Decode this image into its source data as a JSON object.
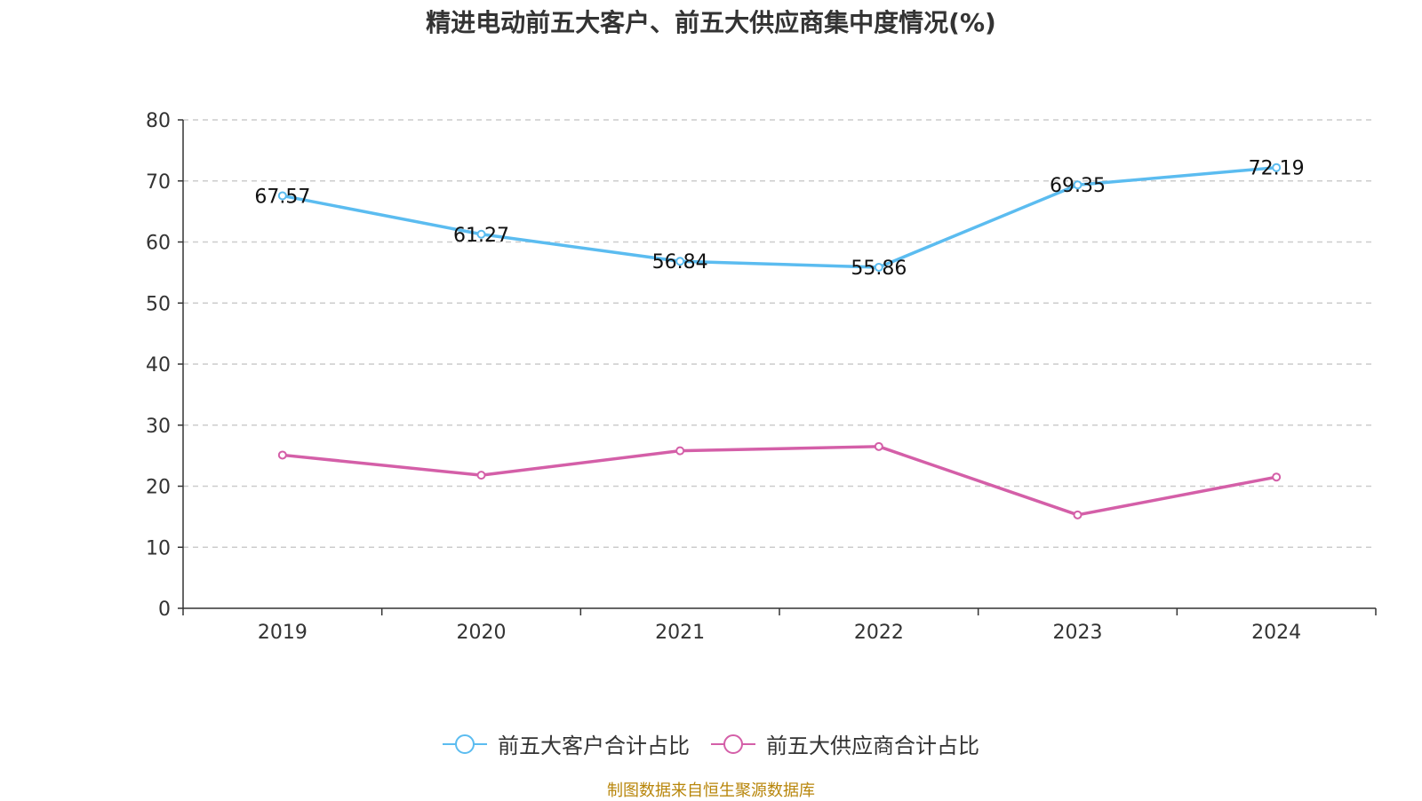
{
  "title": "精进电动前五大客户、前五大供应商集中度情况(%)",
  "source": "制图数据来自恒生聚源数据库",
  "chart_data": {
    "type": "line",
    "title": "精进电动前五大客户、前五大供应商集中度情况(%)",
    "categories": [
      "2019",
      "2020",
      "2021",
      "2022",
      "2023",
      "2024"
    ],
    "ylim": [
      0,
      80
    ],
    "yticks": [
      0,
      10,
      20,
      30,
      40,
      50,
      60,
      70,
      80
    ],
    "grid": true,
    "legend_position": "bottom",
    "series": [
      {
        "name": "前五大客户合计占比",
        "color": "#5bbcf0",
        "values": [
          67.57,
          61.27,
          56.84,
          55.86,
          69.35,
          72.19
        ],
        "labels": [
          "67.57",
          "61.27",
          "56.84",
          "55.86",
          "69.35",
          "72.19"
        ],
        "show_labels": true
      },
      {
        "name": "前五大供应商合计占比",
        "color": "#d45fa8",
        "values": [
          25.1,
          21.8,
          25.8,
          26.5,
          15.3,
          21.5
        ],
        "show_labels": false
      }
    ]
  }
}
